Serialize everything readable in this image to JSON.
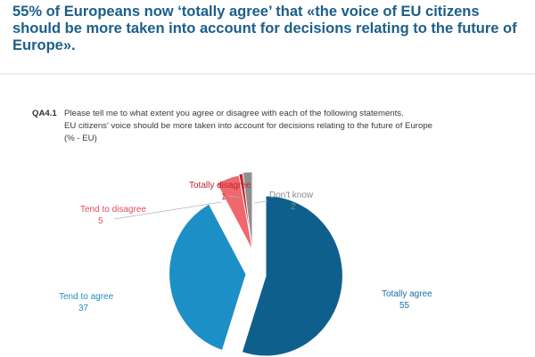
{
  "headline": "55% of Europeans now ‘totally agree’ that «the voice of EU citizens should be more taken into account for decisions relating to the future of Europe».",
  "question": {
    "code": "QA4.1",
    "line1": "Please tell me to what extent you agree or disagree with each of the following statements.",
    "line2": "EU citizens' voice should be more taken into account for decisions relating to the future of Europe",
    "line3": "(% - EU)"
  },
  "chart_data": {
    "type": "pie",
    "title": "",
    "unit": "%",
    "slices": [
      {
        "label": "Totally agree",
        "value": 55,
        "color": "#0f5f8c"
      },
      {
        "label": "Tend to agree",
        "value": 37,
        "color": "#1d8fc7"
      },
      {
        "label": "Tend to disagree",
        "value": 5,
        "color": "#f0676f"
      },
      {
        "label": "Totally disagree",
        "value": 1,
        "color": "#c0242b"
      },
      {
        "label": "Don't know",
        "value": 2,
        "color": "#8f8f8f"
      }
    ],
    "label_colors": {
      "Totally agree": "#1c6ea4",
      "Tend to agree": "#1d8fc7",
      "Tend to disagree": "#e0505a",
      "Totally disagree": "#c0242b",
      "Don't know": "#8a8a8a"
    }
  }
}
